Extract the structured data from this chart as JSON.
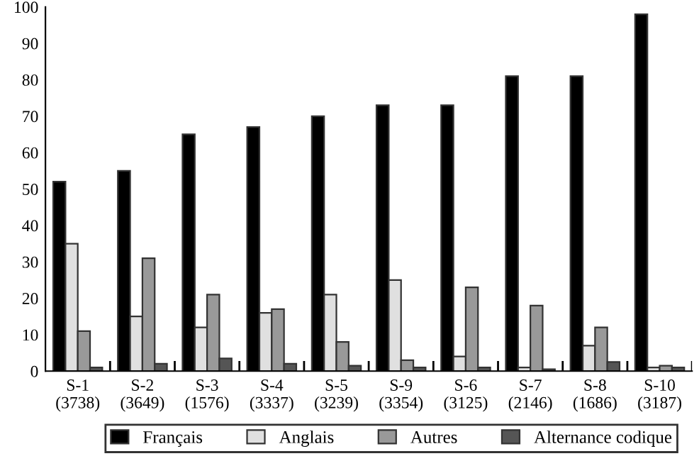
{
  "chart_data": {
    "type": "bar",
    "categories": [
      "S-1\n(3738)",
      "S-2\n(3649)",
      "S-3\n(1576)",
      "S-4\n(3337)",
      "S-5\n(3239)",
      "S-9\n(3354)",
      "S-6\n(3125)",
      "S-7\n(2146)",
      "S-8\n(1686)",
      "S-10\n(3187)"
    ],
    "series": [
      {
        "name": "Français",
        "color": "#000000",
        "values": [
          52,
          55,
          65,
          67,
          70,
          73,
          73,
          81,
          81,
          98
        ]
      },
      {
        "name": "Anglais",
        "color": "#e0e0e0",
        "values": [
          35,
          15,
          12,
          16,
          21,
          25,
          4,
          1,
          7,
          1
        ]
      },
      {
        "name": "Autres",
        "color": "#999999",
        "values": [
          11,
          31,
          21,
          17,
          8,
          3,
          23,
          18,
          12,
          1.5
        ]
      },
      {
        "name": "Alternance codique",
        "color": "#555555",
        "values": [
          1,
          2,
          3.5,
          2,
          1.5,
          1,
          1,
          0.5,
          2.5,
          1
        ]
      }
    ],
    "ylim": [
      0,
      100
    ],
    "yticks": [
      0,
      10,
      20,
      30,
      40,
      50,
      60,
      70,
      80,
      90,
      100
    ],
    "grid": false,
    "legend": "bottom"
  }
}
